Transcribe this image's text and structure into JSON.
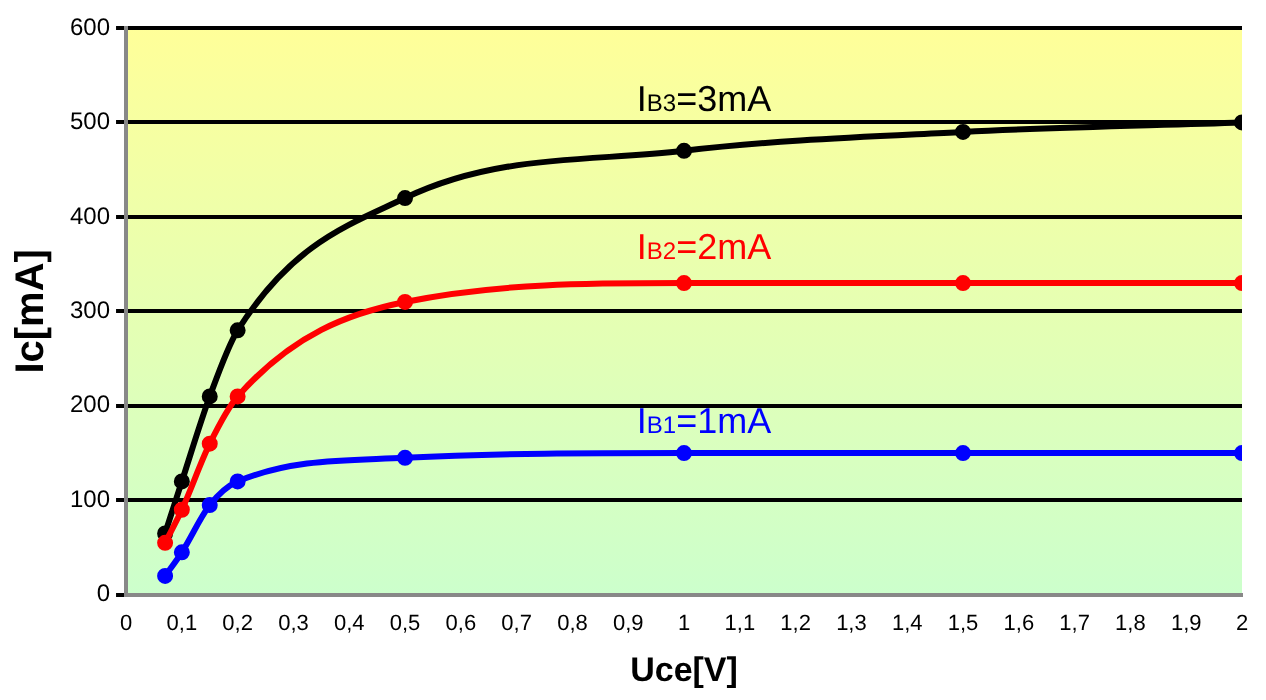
{
  "chart_data": {
    "type": "line",
    "xlabel": "Uce[V]",
    "ylabel": "Ic[mA]",
    "x": [
      0.07,
      0.1,
      0.15,
      0.2,
      0.5,
      1,
      1.5,
      2
    ],
    "series": [
      {
        "name": "I$_{B3}$=3mA",
        "color": "#000000",
        "values": [
          65,
          120,
          210,
          280,
          420,
          470,
          490,
          500
        ]
      },
      {
        "name": "I$_{B2}$=2mA",
        "color": "#ff0000",
        "values": [
          55,
          90,
          160,
          210,
          310,
          330,
          330,
          330
        ]
      },
      {
        "name": "I$_{B1}$=1mA",
        "color": "#0000ff",
        "values": [
          20,
          45,
          95,
          120,
          145,
          150,
          150,
          150
        ]
      }
    ],
    "xlim": [
      0,
      2
    ],
    "xticks": [
      0,
      {
        "value": 0.1,
        "label": "0,1"
      },
      {
        "value": 0.2,
        "label": "0,2"
      },
      {
        "value": 0.3,
        "label": "0,3"
      },
      {
        "value": 0.4,
        "label": "0,4"
      },
      {
        "value": 0.5,
        "label": "0,5"
      },
      {
        "value": 0.6,
        "label": "0,6"
      },
      {
        "value": 0.7,
        "label": "0,7"
      },
      {
        "value": 0.8,
        "label": "0,8"
      },
      {
        "value": 0.9,
        "label": "0,9"
      },
      1,
      {
        "value": 1.1,
        "label": "1,1"
      },
      {
        "value": 1.2,
        "label": "1,2"
      },
      {
        "value": 1.3,
        "label": "1,3"
      },
      {
        "value": 1.4,
        "label": "1,4"
      },
      {
        "value": 1.5,
        "label": "1,5"
      },
      {
        "value": 1.6,
        "label": "1,6"
      },
      {
        "value": 1.7,
        "label": "1,7"
      },
      {
        "value": 1.8,
        "label": "1,8"
      },
      {
        "value": 1.9,
        "label": "1,9"
      },
      2
    ],
    "ylim": [
      0,
      600
    ],
    "yticks": [
      0,
      100,
      200,
      300,
      400,
      500,
      600
    ],
    "grid": "y",
    "legend": false,
    "marker": "circle",
    "line_style": "solid"
  }
}
